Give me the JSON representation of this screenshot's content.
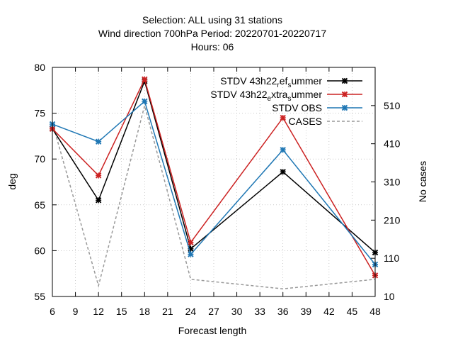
{
  "chart_data": {
    "type": "line",
    "title_lines": [
      "Selection: ALL using    31 stations",
      "Wind direction 700hPa   Period: 20220701-20220717",
      "Hours:  06"
    ],
    "xlabel": "Forecast length",
    "ylabel": "deg",
    "y2label": "No cases",
    "xlim": [
      6,
      48
    ],
    "ylim": [
      55,
      80
    ],
    "y2lim": [
      10,
      610
    ],
    "xticks": [
      6,
      9,
      12,
      15,
      18,
      21,
      24,
      27,
      30,
      33,
      36,
      39,
      42,
      45,
      48
    ],
    "yticks": [
      55,
      60,
      65,
      70,
      75,
      80
    ],
    "y2ticks": [
      10,
      110,
      210,
      310,
      410,
      510
    ],
    "x": [
      6,
      12,
      18,
      24,
      36,
      48
    ],
    "series": [
      {
        "name": "STDV 43h22_ref_summer",
        "legend_main": "STDV 43h22",
        "legend_parts": [
          [
            "r",
            "sub"
          ],
          [
            "ef",
            ""
          ],
          [
            "s",
            "sub"
          ],
          [
            "ummer",
            ""
          ]
        ],
        "color": "#000000",
        "values": [
          73.3,
          65.5,
          78.5,
          60.2,
          68.6,
          59.8
        ]
      },
      {
        "name": "STDV 43h22_extra_summer",
        "legend_main": "STDV 43h22",
        "legend_parts": [
          [
            "e",
            "sub"
          ],
          [
            "xtra",
            ""
          ],
          [
            "s",
            "sub"
          ],
          [
            "ummer",
            ""
          ]
        ],
        "color": "#cc2222",
        "values": [
          73.3,
          68.2,
          78.7,
          60.9,
          74.5,
          57.3
        ]
      },
      {
        "name": "STDV OBS",
        "legend_main": "STDV OBS",
        "legend_parts": [],
        "color": "#1f77b4",
        "values": [
          73.8,
          71.9,
          76.3,
          59.6,
          71.0,
          58.5
        ]
      }
    ],
    "cases": {
      "name": "CASES",
      "color": "#999999",
      "values": [
        465,
        38,
        510,
        55,
        30,
        55
      ]
    }
  }
}
